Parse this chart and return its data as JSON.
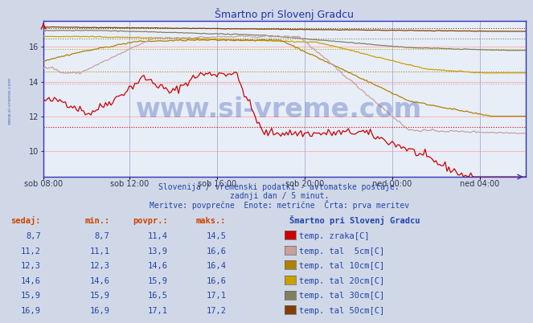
{
  "title": "Šmartno pri Slovenj Gradcu",
  "bg_color": "#d0d8e8",
  "plot_bg_color": "#e8eef8",
  "grid_color_h": "#ffaaaa",
  "grid_color_v": "#aaaacc",
  "x_labels": [
    "sob 08:00",
    "sob 12:00",
    "sob 16:00",
    "sob 20:00",
    "ned 00:00",
    "ned 04:00"
  ],
  "x_ticks_frac": [
    0.0,
    0.1818,
    0.3636,
    0.5454,
    0.7272,
    0.909
  ],
  "ylim": [
    8.5,
    17.5
  ],
  "yticks": [
    10,
    12,
    14,
    16
  ],
  "subtitle1": "Slovenija / vremenski podatki - avtomatske postaje.",
  "subtitle2": "zadnji dan / 5 minut.",
  "subtitle3": "Meritve: povprečne  Enote: metrične  Črta: prva meritev",
  "legend_title": "Šmartno pri Slovenj Gradcu",
  "table_headers": [
    "sedaj:",
    "min.:",
    "povpr.:",
    "maks.:"
  ],
  "table_data": [
    [
      "8,7",
      "8,7",
      "11,4",
      "14,5",
      "#cc0000",
      "temp. zraka[C]"
    ],
    [
      "11,2",
      "11,1",
      "13,9",
      "16,6",
      "#c8a0a0",
      "temp. tal  5cm[C]"
    ],
    [
      "12,3",
      "12,3",
      "14,6",
      "16,4",
      "#b08000",
      "temp. tal 10cm[C]"
    ],
    [
      "14,6",
      "14,6",
      "15,9",
      "16,6",
      "#c8a000",
      "temp. tal 20cm[C]"
    ],
    [
      "15,9",
      "15,9",
      "16,5",
      "17,1",
      "#808060",
      "temp. tal 30cm[C]"
    ],
    [
      "16,9",
      "16,9",
      "17,1",
      "17,2",
      "#804000",
      "temp. tal 50cm[C]"
    ]
  ],
  "series_colors": [
    "#cc0000",
    "#c8a0a0",
    "#b08000",
    "#c8a000",
    "#808060",
    "#804000"
  ],
  "series_avgs": [
    11.4,
    13.9,
    14.6,
    15.9,
    16.5,
    17.1
  ],
  "text_color_blue": "#2244aa",
  "text_color_red": "#cc4400"
}
